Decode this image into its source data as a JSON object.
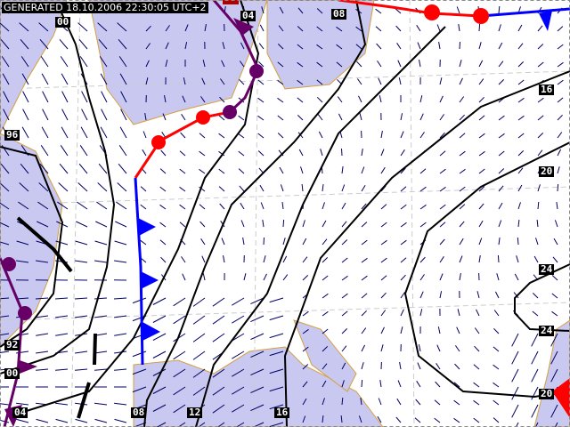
{
  "header": {
    "generated": "GENERATED 18.10.2006 22:30:05 UTC+2"
  },
  "isobar_labels": [
    "00",
    "04",
    "08",
    "96",
    "16",
    "20",
    "24",
    "24",
    "20",
    "92",
    "00",
    "04",
    "08",
    "12",
    "16"
  ],
  "colors": {
    "sea": "#c8c8f0",
    "land": "#ffffff",
    "coast": "#d4a040",
    "isobar": "#000000",
    "warm_front": "#ff0000",
    "cold_front": "#0000ff",
    "occluded_front": "#660066",
    "wind_arrow": "#000066"
  }
}
